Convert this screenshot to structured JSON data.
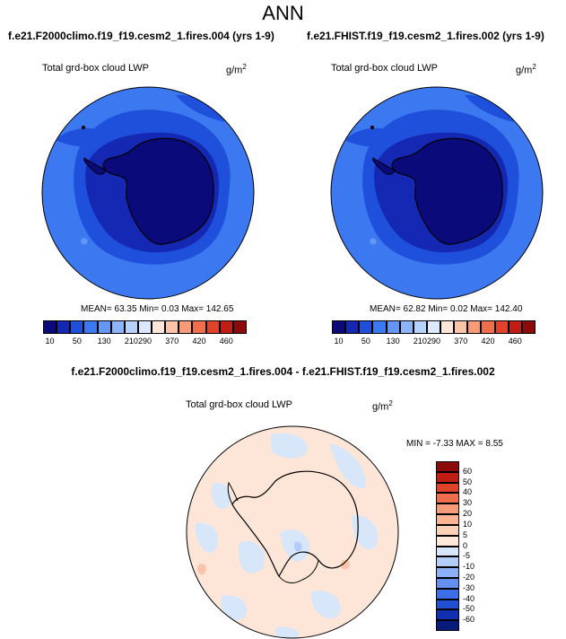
{
  "title": "ANN",
  "panels": [
    {
      "case_title": "f.e21.F2000climo.f19_f19.cesm2_1.fires.004 (yrs 1-9)",
      "variable": "Total grd-box cloud LWP",
      "units_base": "g/m",
      "units_exp": "2",
      "stats": "MEAN=  63.35  Min=   0.03  Max= 142.65"
    },
    {
      "case_title": "f.e21.FHIST.f19_f19.cesm2_1.fires.002 (yrs 1-9)",
      "variable": "Total grd-box cloud LWP",
      "units_base": "g/m",
      "units_exp": "2",
      "stats": "MEAN=  62.82  Min=   0.02  Max= 142.40"
    }
  ],
  "abs_colorbar": {
    "colors": [
      "#0a0a7a",
      "#1428b4",
      "#1e50dc",
      "#3c78f0",
      "#6496f5",
      "#8cb4fa",
      "#b4d2fc",
      "#dce8fc",
      "#fde6d8",
      "#fbc3a8",
      "#f89b78",
      "#f06e4b",
      "#e0422a",
      "#c01e14",
      "#8c0a0a"
    ],
    "labels": [
      "10",
      "50",
      "130",
      "210",
      "290",
      "370",
      "420",
      "460"
    ]
  },
  "diff": {
    "title": "f.e21.F2000climo.f19_f19.cesm2_1.fires.004 - f.e21.FHIST.f19_f19.cesm2_1.fires.002",
    "variable": "Total grd-box cloud LWP",
    "units_base": "g/m",
    "units_exp": "2",
    "stats": "MIN =  -7.33 MAX =   8.55",
    "colorbar": {
      "colors": [
        "#8c0a0a",
        "#c01e14",
        "#e0422a",
        "#f06e4b",
        "#f89b78",
        "#fbb490",
        "#fbd2b8",
        "#fde8da",
        "#d8e6fa",
        "#b4ccf8",
        "#8cb0f5",
        "#6490f0",
        "#3c6ee6",
        "#2050d2",
        "#1030b0",
        "#081a7a"
      ],
      "labels": [
        "60",
        "50",
        "40",
        "30",
        "20",
        "10",
        "5",
        "0",
        "-5",
        "-10",
        "-20",
        "-30",
        "-40",
        "-50",
        "-60"
      ]
    }
  },
  "map_colors": {
    "ocean_outer": "#3c78f0",
    "ocean_mid": "#1e50dc",
    "continent": "#0a0a7a",
    "coastal_band": "#1428b4",
    "diff_base": "#fde6d8",
    "diff_neg": "#d8e6fa",
    "diff_pos": "#fbc3a8",
    "diff_neg2": "#b4ccf8"
  }
}
